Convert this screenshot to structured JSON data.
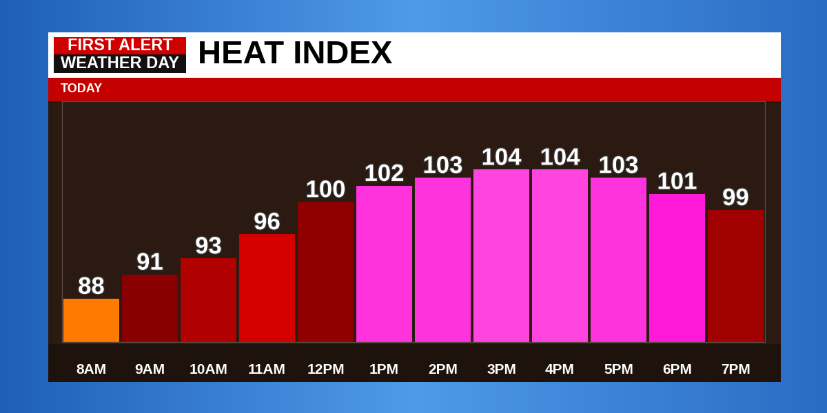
{
  "chart_data": {
    "type": "bar",
    "title": "HEAT INDEX",
    "subtitle": "TODAY",
    "annotations": [
      "FIRST ALERT",
      "WEATHER DAY"
    ],
    "categories": [
      "8AM",
      "9AM",
      "10AM",
      "11AM",
      "12PM",
      "1PM",
      "2PM",
      "3PM",
      "4PM",
      "5PM",
      "6PM",
      "7PM"
    ],
    "values": [
      88,
      91,
      93,
      96,
      100,
      102,
      103,
      104,
      104,
      103,
      101,
      99
    ],
    "colors": [
      "#ff7a00",
      "#8a0000",
      "#b00000",
      "#d40000",
      "#8f0000",
      "#ff33dd",
      "#ff33dd",
      "#ff44e0",
      "#ff44e0",
      "#ff33dd",
      "#ff1ad9",
      "#a00000"
    ],
    "ylim": [
      82.6,
      112.5
    ],
    "data_labels": true,
    "tick_labels": "x",
    "grid": false
  }
}
